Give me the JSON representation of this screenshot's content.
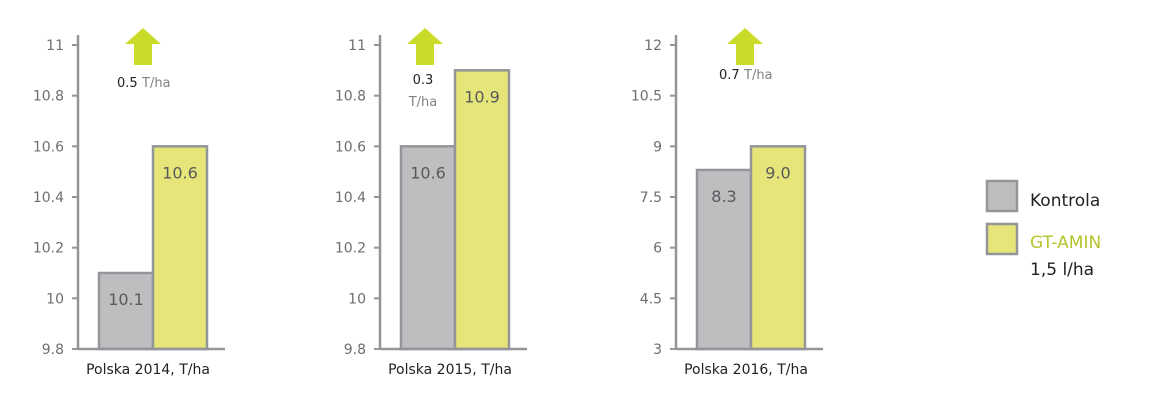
{
  "colors": {
    "kontrola": "#bcbec0",
    "gtamin": "#e6e57a",
    "border": "#939598",
    "arrow": "#cbdb2a",
    "gtamin_text": "#b5c42c"
  },
  "legend": {
    "kontrola": "Kontrola",
    "gtamin": "GT-AMIN",
    "gtamin_dose": "1,5 l/ha"
  },
  "chart_data": [
    {
      "type": "bar",
      "title": "Polska 2014, T/ha",
      "xlabel": "Polska 2014, T/ha",
      "ylim": [
        9.8,
        11
      ],
      "ticks": [
        "9.8",
        "10",
        "10.2",
        "10.4",
        "10.6",
        "10.8",
        "11"
      ],
      "tickvals": [
        9.8,
        10,
        10.2,
        10.4,
        10.6,
        10.8,
        11
      ],
      "series": [
        {
          "name": "Kontrola",
          "value": 10.1,
          "label": "10.1"
        },
        {
          "name": "GT-AMIN 1,5 l/ha",
          "value": 10.6,
          "label": "10.6"
        }
      ],
      "increase": {
        "value": "0.5",
        "unit": "T/ha"
      }
    },
    {
      "type": "bar",
      "title": "Polska 2015, T/ha",
      "xlabel": "Polska 2015, T/ha",
      "ylim": [
        9.8,
        11
      ],
      "ticks": [
        "9.8",
        "10",
        "10.2",
        "10.4",
        "10.6",
        "10.8",
        "11"
      ],
      "tickvals": [
        9.8,
        10,
        10.2,
        10.4,
        10.6,
        10.8,
        11
      ],
      "series": [
        {
          "name": "Kontrola",
          "value": 10.6,
          "label": "10.6"
        },
        {
          "name": "GT-AMIN 1,5 l/ha",
          "value": 10.9,
          "label": "10.9"
        }
      ],
      "increase": {
        "value": "0.3",
        "unit": "T/ha"
      }
    },
    {
      "type": "bar",
      "title": "Polska 2016, T/ha",
      "xlabel": "Polska 2016, T/ha",
      "ylim": [
        3,
        12
      ],
      "ticks": [
        "3",
        "4.5",
        "6",
        "7.5",
        "9",
        "10.5",
        "12"
      ],
      "tickvals": [
        3,
        4.5,
        6,
        7.5,
        9,
        10.5,
        12
      ],
      "series": [
        {
          "name": "Kontrola",
          "value": 8.3,
          "label": "8.3"
        },
        {
          "name": "GT-AMIN 1,5 l/ha",
          "value": 9.0,
          "label": "9.0"
        }
      ],
      "increase": {
        "value": "0.7",
        "unit": "T/ha"
      }
    }
  ]
}
